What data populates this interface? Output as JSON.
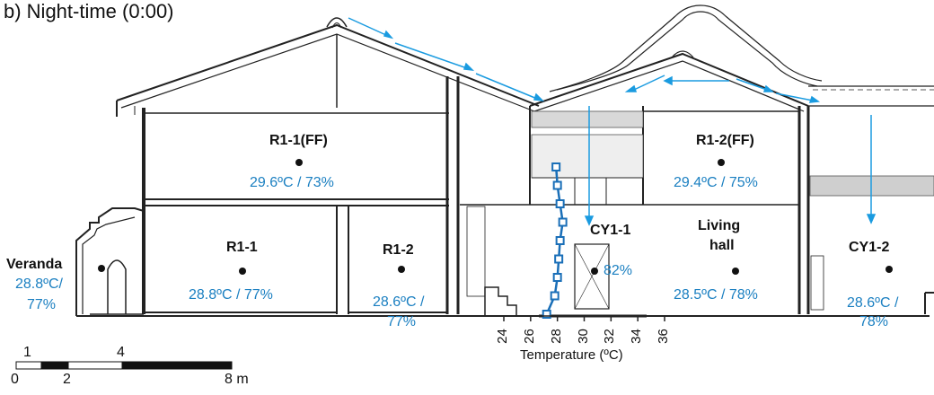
{
  "title": "b) Night-time (0:00)",
  "rooms": {
    "r1_1_ff": {
      "name": "R1-1(FF)",
      "value": "29.6ºC / 73%"
    },
    "r1_2_ff": {
      "name": "R1-2(FF)",
      "value": "29.4ºC / 75%"
    },
    "veranda": {
      "name": "Veranda",
      "value1": "28.8ºC/",
      "value2": "77%"
    },
    "r1_1": {
      "name": "R1-1",
      "value": "28.8ºC / 77%"
    },
    "r1_2": {
      "name": "R1-2",
      "value1": "28.6ºC /",
      "value2": "77%"
    },
    "cy1_1": {
      "name": "CY1-1",
      "value": "82%"
    },
    "living_hall": {
      "name1": "Living",
      "name2": "hall",
      "value": "28.5ºC / 78%"
    },
    "cy1_2": {
      "name": "CY1-2",
      "value1": "28.6ºC /",
      "value2": "78%"
    }
  },
  "temperature_axis": {
    "label": "Temperature (ºC)",
    "ticks": [
      "24",
      "26",
      "28",
      "30",
      "32",
      "34",
      "36"
    ]
  },
  "profile": {
    "temperature": [
      27.2,
      27.8,
      28.0,
      28.1,
      28.2,
      28.4,
      28.2,
      28.0,
      27.9
    ]
  },
  "scale_bar": {
    "labels_top": [
      "1",
      "4"
    ],
    "labels_bottom": [
      "0",
      "2",
      "8 m"
    ]
  },
  "colors": {
    "airflow": "#1a9be0",
    "profile": "#1a6fb8",
    "text_blue": "#1a7fc1",
    "line": "#222222"
  }
}
